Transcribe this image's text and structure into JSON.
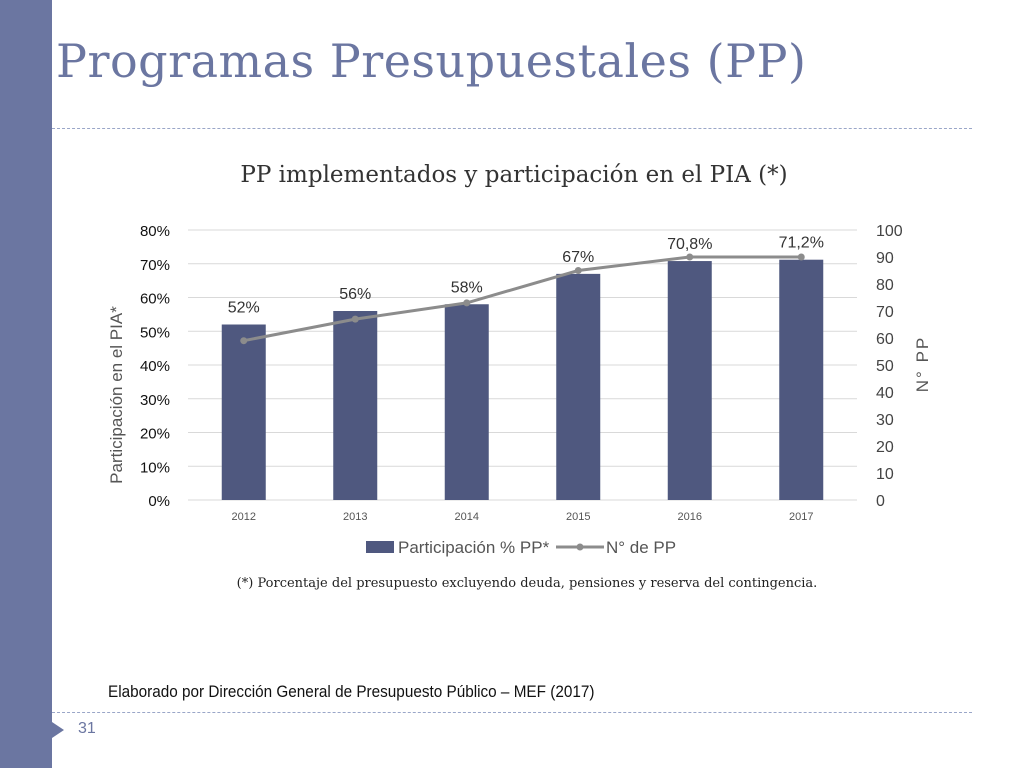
{
  "slide": {
    "title": "Programas Presupuestales (PP)",
    "footnote": "(*) Porcentaje del presupuesto excluyendo deuda, pensiones y reserva del contingencia.",
    "credit": "Elaborado por Dirección General de Presupuesto Público – MEF (2017)",
    "page_number": "31"
  },
  "colors": {
    "accent": "#6b76a1",
    "bar": "#4f587f",
    "line": "#8c8c8c"
  },
  "chart_data": {
    "type": "bar",
    "title": "PP implementados y participación en el PIA (*)",
    "categories": [
      "2012",
      "2013",
      "2014",
      "2015",
      "2016",
      "2017"
    ],
    "y_left": {
      "label": "Participación en el PIA*",
      "range": [
        0,
        80
      ],
      "unit": "%",
      "ticks": [
        "0%",
        "10%",
        "20%",
        "30%",
        "40%",
        "50%",
        "60%",
        "70%",
        "80%"
      ]
    },
    "y_right": {
      "label": "N° PP",
      "range": [
        0,
        100
      ],
      "ticks": [
        "0",
        "10",
        "20",
        "30",
        "40",
        "50",
        "60",
        "70",
        "80",
        "90",
        "100"
      ]
    },
    "series": [
      {
        "name": "Participación % PP*",
        "type": "bar",
        "axis": "left",
        "values": [
          52,
          56,
          58,
          67,
          70.8,
          71.2
        ],
        "labels": [
          "52%",
          "56%",
          "58%",
          "67%",
          "70,8%",
          "71,2%"
        ]
      },
      {
        "name": "N° de PP",
        "type": "line",
        "axis": "right",
        "values": [
          59,
          67,
          73,
          85,
          90,
          90
        ]
      }
    ],
    "legend": "bottom",
    "grid": true
  }
}
